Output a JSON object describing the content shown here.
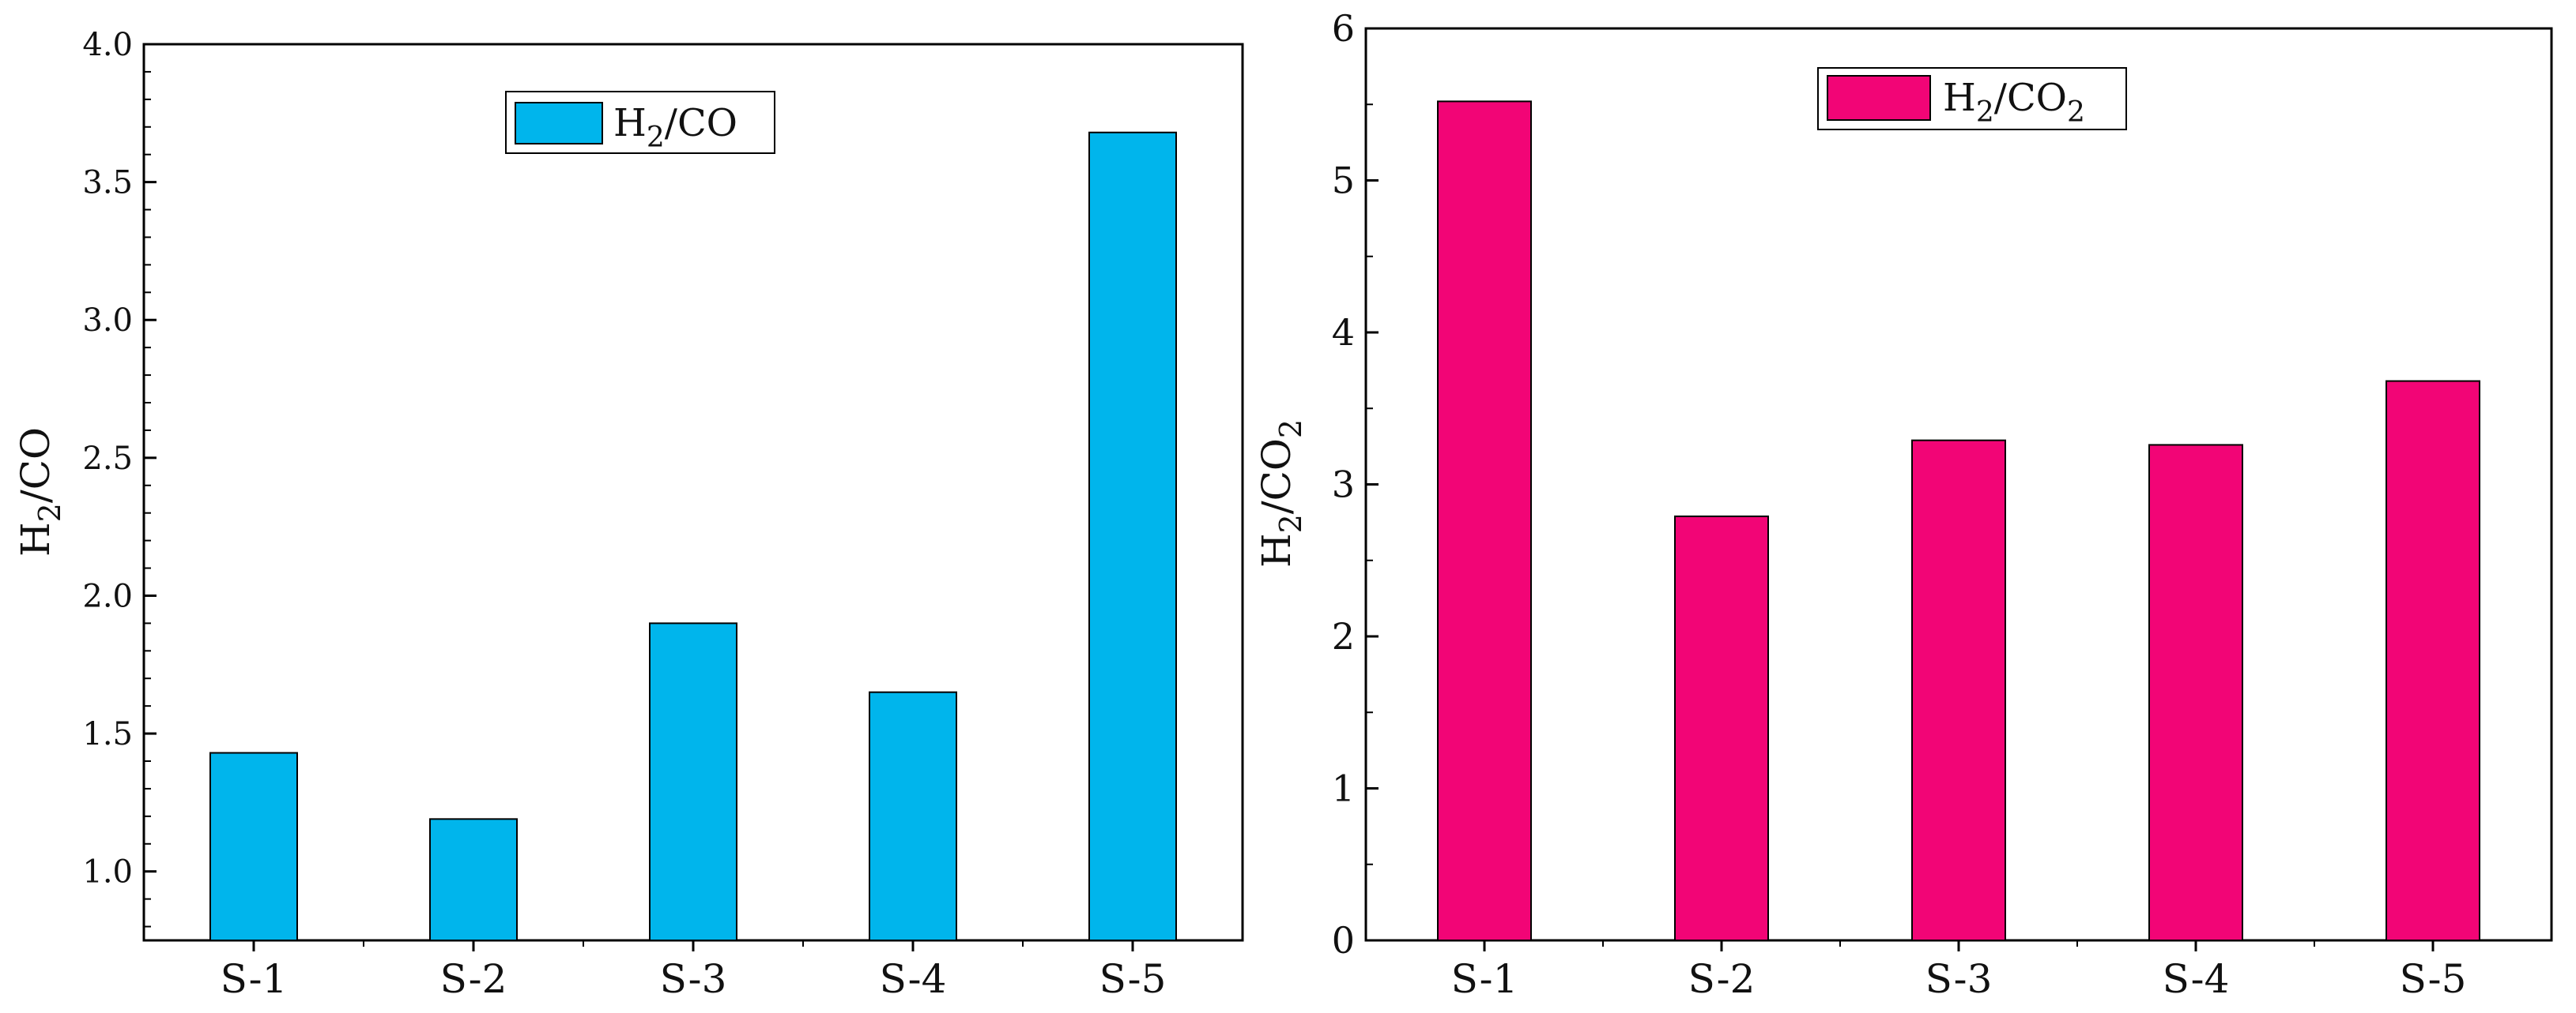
{
  "chart_data": [
    {
      "type": "bar",
      "categories": [
        "S-1",
        "S-2",
        "S-3",
        "S-4",
        "S-5"
      ],
      "values": [
        1.43,
        1.19,
        1.9,
        1.65,
        3.68
      ],
      "ylabel": "H2/CO",
      "ylabel_main": "H",
      "ylabel_sub": "2",
      "ylabel_tail": "/CO",
      "ylim": [
        0.75,
        4.0
      ],
      "yticks": [
        1.0,
        1.5,
        2.0,
        2.5,
        3.0,
        3.5,
        4.0
      ],
      "ytick_labels": [
        "1.0",
        "1.5",
        "2.0",
        "2.5",
        "3.0",
        "3.5",
        "4.0"
      ],
      "legend": {
        "label": "H2/CO",
        "main": "H",
        "sub": "2",
        "tail": "/CO",
        "placement": "top-center"
      },
      "color": "#00b5ec",
      "grid": false
    },
    {
      "type": "bar",
      "categories": [
        "S-1",
        "S-2",
        "S-3",
        "S-4",
        "S-5"
      ],
      "values": [
        5.52,
        2.79,
        3.29,
        3.26,
        3.68
      ],
      "ylabel": "H2/CO2",
      "ylabel_main": "H",
      "ylabel_sub": "2",
      "ylabel_tail": "/CO",
      "ylabel_sub2": "2",
      "ylim": [
        0,
        6
      ],
      "yticks": [
        0,
        1,
        2,
        3,
        4,
        5,
        6
      ],
      "ytick_labels": [
        "0",
        "1",
        "2",
        "3",
        "4",
        "5",
        "6"
      ],
      "legend": {
        "label": "H2/CO2",
        "main": "H",
        "sub": "2",
        "tail": "/CO",
        "sub2": "2",
        "placement": "top-center"
      },
      "color": "#f20576",
      "grid": false
    }
  ]
}
